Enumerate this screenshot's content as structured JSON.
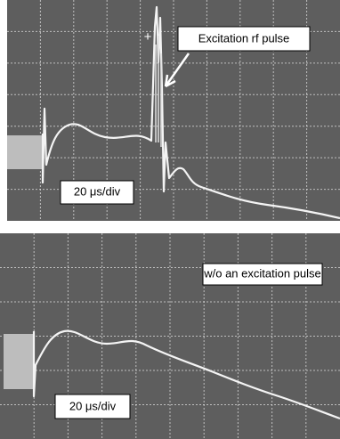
{
  "top_panel": {
    "marker": "+",
    "annotation": "Excitation rf pulse",
    "scale": "20 μs/div"
  },
  "bottom_panel": {
    "annotation": "w/o an excitation pulse",
    "scale": "20 μs/div"
  }
}
